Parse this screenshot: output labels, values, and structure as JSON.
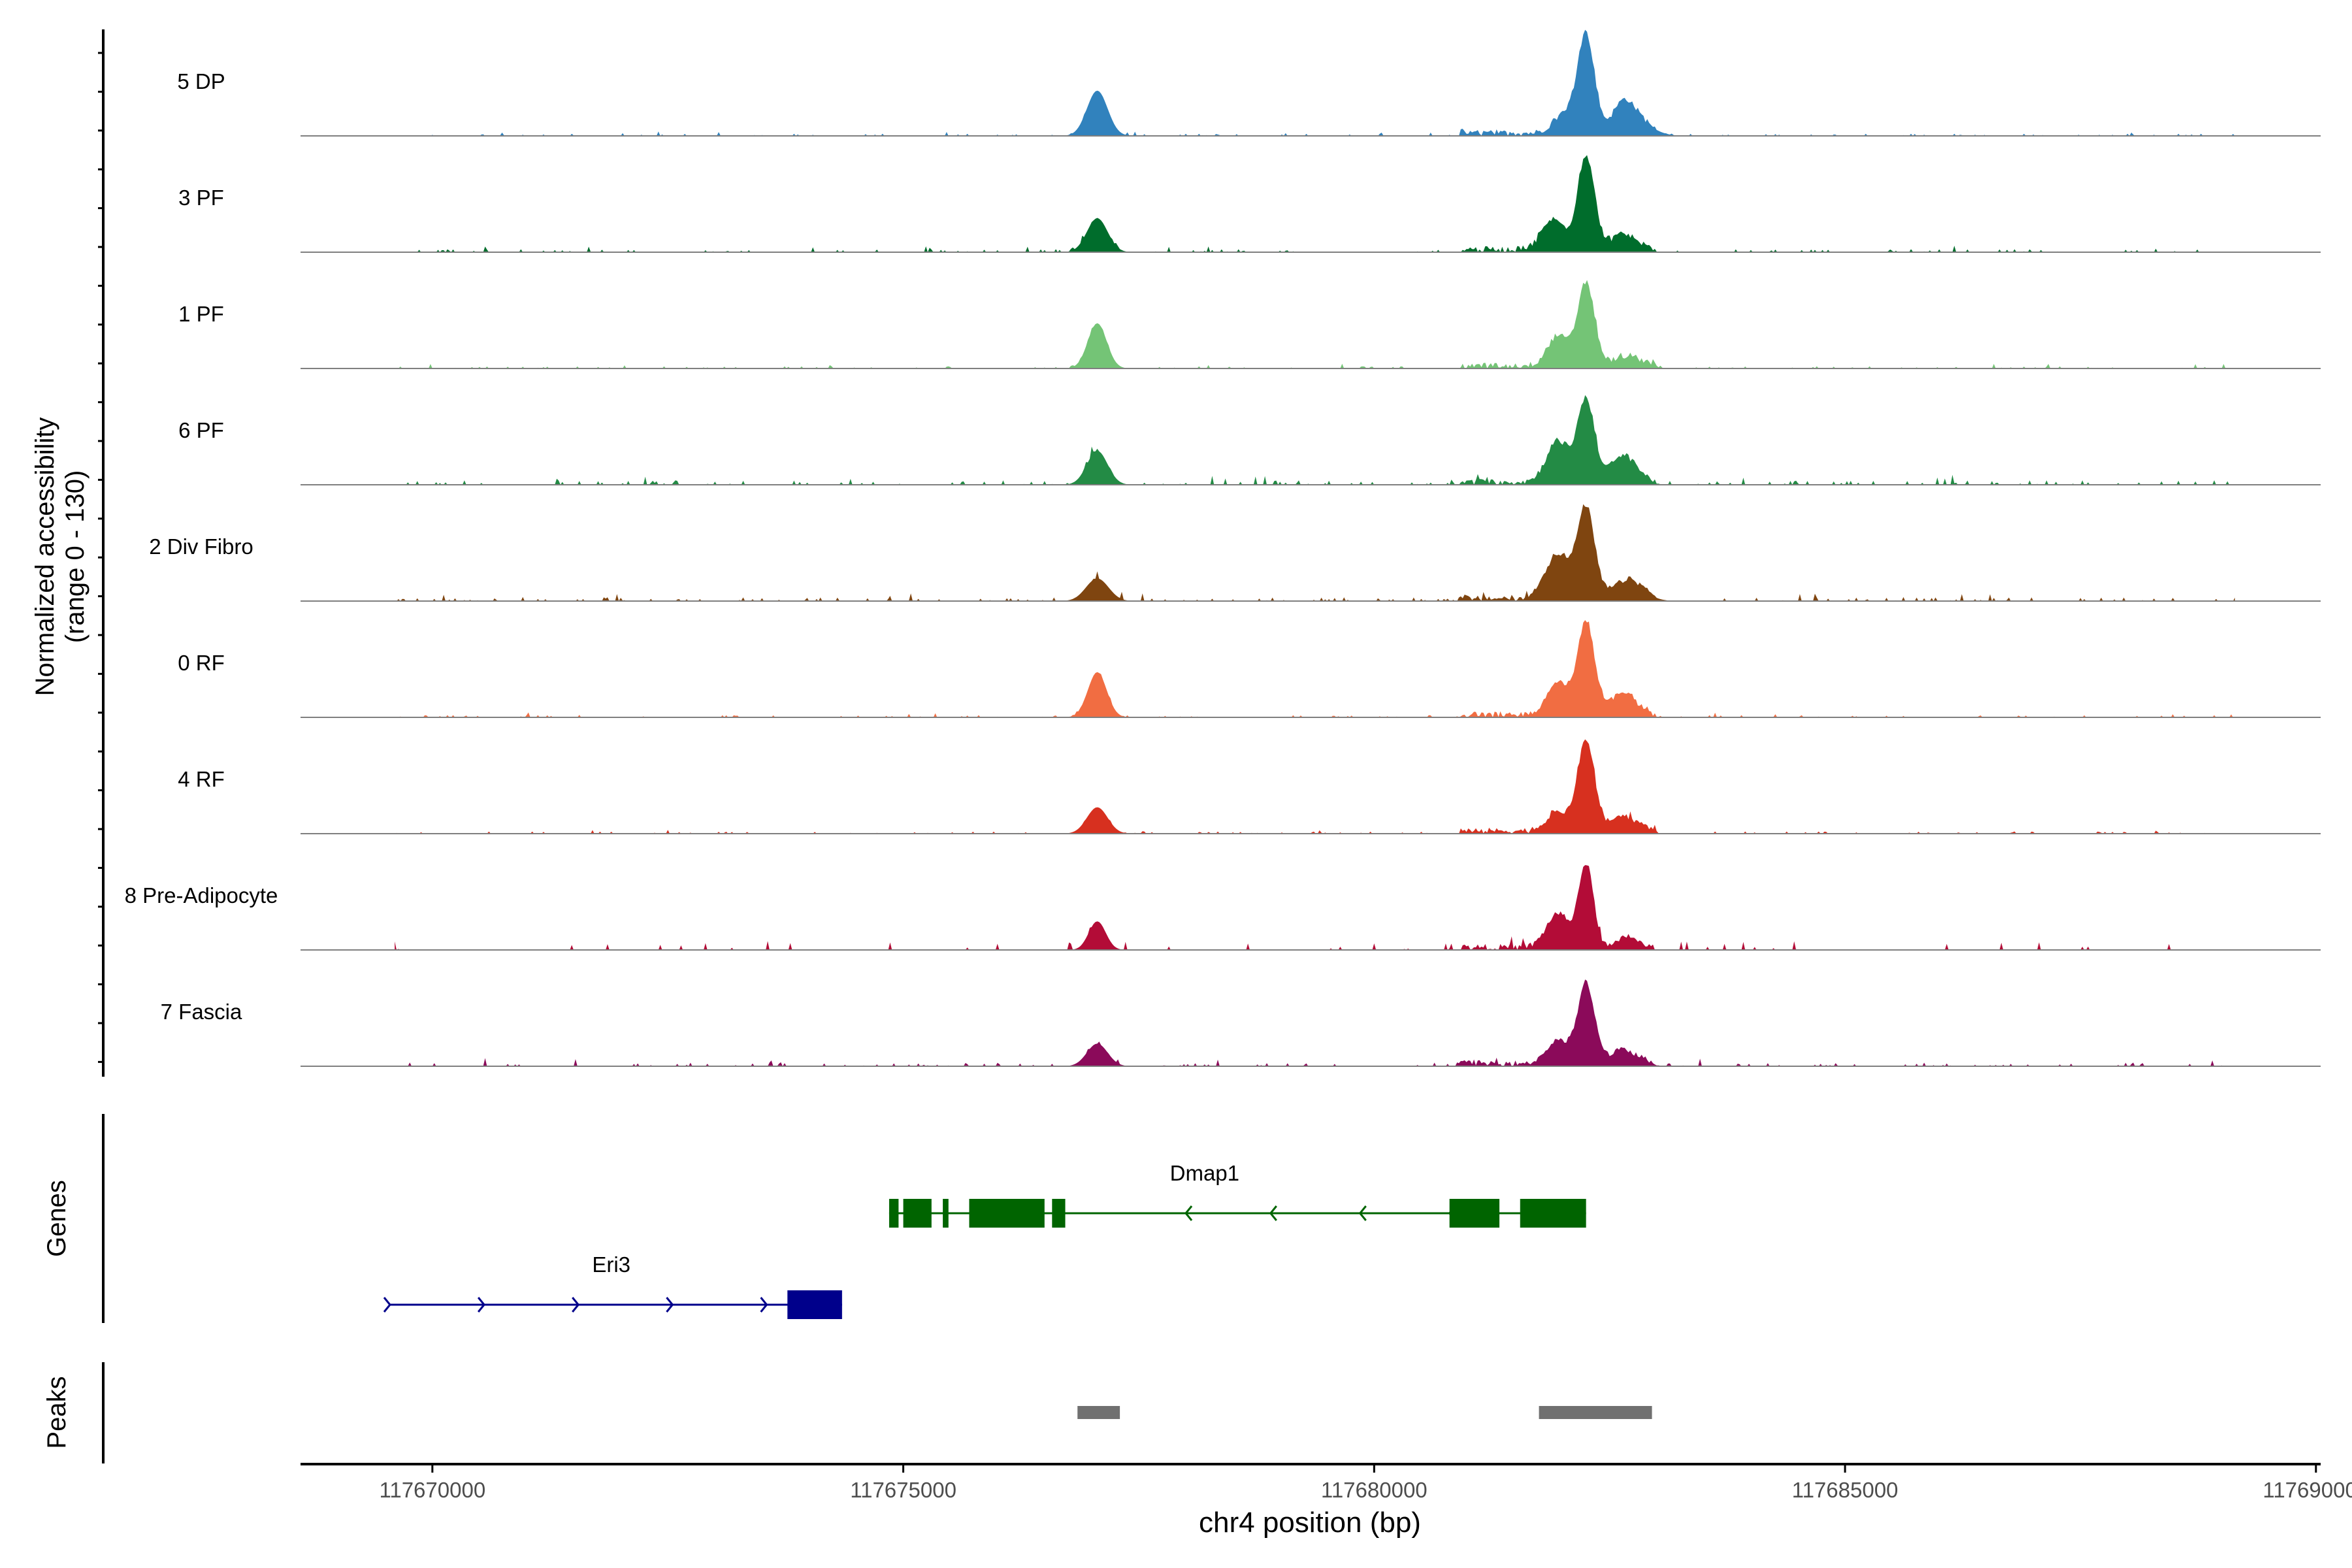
{
  "chart_data": {
    "type": "area",
    "title": "",
    "xlabel": "chr4 position (bp)",
    "ylabel_line1": "Normalized accessibility",
    "ylabel_line2": "(range 0 - 130)",
    "ylim": [
      0,
      130
    ],
    "xlim": [
      117668600,
      117690050
    ],
    "x_ticks": [
      117670000,
      117675000,
      117680000,
      117685000,
      117690000
    ],
    "x_tick_labels": [
      "117670000",
      "117675000",
      "117680000",
      "117685000",
      "117690000"
    ],
    "tracks": [
      {
        "name": "5 DP",
        "color": "#3182bd",
        "peaks": [
          [
            117677060,
            60,
            110
          ],
          [
            117682020,
            25,
            120
          ],
          [
            117682250,
            130,
            90
          ],
          [
            117682650,
            40,
            120
          ],
          [
            117682850,
            12,
            150
          ]
        ],
        "noise": 3,
        "sparse": false
      },
      {
        "name": "3 PF",
        "color": "#006d2c",
        "peaks": [
          [
            117677060,
            45,
            110
          ],
          [
            117681900,
            40,
            120
          ],
          [
            117682250,
            125,
            90
          ],
          [
            117682650,
            20,
            140
          ]
        ],
        "noise": 4,
        "sparse": false
      },
      {
        "name": "1 PF",
        "color": "#74c476",
        "peaks": [
          [
            117677060,
            60,
            100
          ],
          [
            117681950,
            40,
            110
          ],
          [
            117682250,
            110,
            90
          ],
          [
            117682700,
            12,
            160
          ]
        ],
        "noise": 3,
        "sparse": false
      },
      {
        "name": "6 PF",
        "color": "#238b45",
        "peaks": [
          [
            117677060,
            45,
            110
          ],
          [
            117681950,
            55,
            120
          ],
          [
            117682250,
            110,
            90
          ],
          [
            117682650,
            35,
            140
          ]
        ],
        "noise": 6,
        "sparse": false
      },
      {
        "name": "2 Div Fibro",
        "color": "#7f4510",
        "peaks": [
          [
            117677060,
            30,
            120
          ],
          [
            117681950,
            60,
            130
          ],
          [
            117682250,
            120,
            90
          ],
          [
            117682700,
            25,
            160
          ]
        ],
        "noise": 5,
        "sparse": false
      },
      {
        "name": "0 RF",
        "color": "#f16d42",
        "peaks": [
          [
            117677060,
            60,
            100
          ],
          [
            117681950,
            45,
            110
          ],
          [
            117682250,
            125,
            90
          ],
          [
            117682650,
            30,
            130
          ]
        ],
        "noise": 3,
        "sparse": false
      },
      {
        "name": "4 RF",
        "color": "#d7301f",
        "peaks": [
          [
            117677060,
            35,
            110
          ],
          [
            117681950,
            25,
            120
          ],
          [
            117682250,
            120,
            90
          ],
          [
            117682650,
            20,
            140
          ]
        ],
        "noise": 3,
        "sparse": false
      },
      {
        "name": "8 Pre-Adipocyte",
        "color": "#b30c37",
        "peaks": [
          [
            117677060,
            38,
            90
          ],
          [
            117681950,
            45,
            120
          ],
          [
            117682250,
            110,
            80
          ],
          [
            117682700,
            15,
            90
          ]
        ],
        "noise": 0,
        "sparse": true
      },
      {
        "name": "7 Fascia",
        "color": "#8b0a5a",
        "peaks": [
          [
            117677060,
            30,
            110
          ],
          [
            117681950,
            30,
            120
          ],
          [
            117682250,
            105,
            90
          ],
          [
            117682650,
            18,
            150
          ]
        ],
        "noise": 5,
        "sparse": false
      }
    ],
    "genes_label": "Genes",
    "genes": [
      {
        "name": "Dmap1",
        "color": "#006400",
        "start": 117674850,
        "end": 117682250,
        "strand": "-",
        "exons": [
          [
            117674850,
            117674950
          ],
          [
            117675000,
            117675300
          ],
          [
            117675420,
            117675480
          ],
          [
            117675700,
            117676500
          ],
          [
            117676580,
            117676720
          ],
          [
            117680800,
            117681330
          ],
          [
            117681550,
            117682250
          ]
        ]
      },
      {
        "name": "Eri3",
        "color": "#00008b",
        "start": 117669550,
        "end": 117674350,
        "strand": "+",
        "exons": [
          [
            117673770,
            117674350
          ]
        ]
      }
    ],
    "peaks_label": "Peaks",
    "peak_regions": [
      [
        117676850,
        117677300
      ],
      [
        117681750,
        117682950
      ]
    ]
  }
}
